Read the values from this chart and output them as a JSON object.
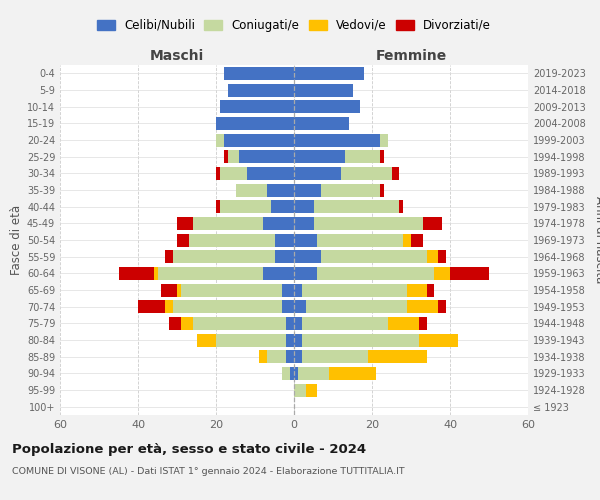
{
  "age_groups": [
    "100+",
    "95-99",
    "90-94",
    "85-89",
    "80-84",
    "75-79",
    "70-74",
    "65-69",
    "60-64",
    "55-59",
    "50-54",
    "45-49",
    "40-44",
    "35-39",
    "30-34",
    "25-29",
    "20-24",
    "15-19",
    "10-14",
    "5-9",
    "0-4"
  ],
  "birth_years": [
    "≤ 1923",
    "1924-1928",
    "1929-1933",
    "1934-1938",
    "1939-1943",
    "1944-1948",
    "1949-1953",
    "1954-1958",
    "1959-1963",
    "1964-1968",
    "1969-1973",
    "1974-1978",
    "1979-1983",
    "1984-1988",
    "1989-1993",
    "1994-1998",
    "1999-2003",
    "2004-2008",
    "2009-2013",
    "2014-2018",
    "2019-2023"
  ],
  "colors": {
    "celibi": "#4472c4",
    "coniugati": "#c5d9a0",
    "vedovi": "#ffc000",
    "divorziati": "#cc0000"
  },
  "maschi": {
    "celibi": [
      0,
      0,
      1,
      2,
      2,
      2,
      3,
      3,
      8,
      5,
      5,
      8,
      6,
      7,
      12,
      14,
      18,
      20,
      19,
      17,
      18
    ],
    "coniugati": [
      0,
      0,
      2,
      5,
      18,
      24,
      28,
      26,
      27,
      26,
      22,
      18,
      13,
      8,
      7,
      3,
      2,
      0,
      0,
      0,
      0
    ],
    "vedovi": [
      0,
      0,
      0,
      2,
      5,
      3,
      2,
      1,
      1,
      0,
      0,
      0,
      0,
      0,
      0,
      0,
      0,
      0,
      0,
      0,
      0
    ],
    "divorziati": [
      0,
      0,
      0,
      0,
      0,
      3,
      7,
      4,
      9,
      2,
      3,
      4,
      1,
      0,
      1,
      1,
      0,
      0,
      0,
      0,
      0
    ]
  },
  "femmine": {
    "celibi": [
      0,
      0,
      1,
      2,
      2,
      2,
      3,
      2,
      6,
      7,
      6,
      5,
      5,
      7,
      12,
      13,
      22,
      14,
      17,
      15,
      18
    ],
    "coniugati": [
      0,
      3,
      8,
      17,
      30,
      22,
      26,
      27,
      30,
      27,
      22,
      28,
      22,
      15,
      13,
      9,
      2,
      0,
      0,
      0,
      0
    ],
    "vedovi": [
      0,
      3,
      12,
      15,
      10,
      8,
      8,
      5,
      4,
      3,
      2,
      0,
      0,
      0,
      0,
      0,
      0,
      0,
      0,
      0,
      0
    ],
    "divorziati": [
      0,
      0,
      0,
      0,
      0,
      2,
      2,
      2,
      10,
      2,
      3,
      5,
      1,
      1,
      2,
      1,
      0,
      0,
      0,
      0,
      0
    ]
  },
  "xlim": 60,
  "title": "Popolazione per età, sesso e stato civile - 2024",
  "subtitle": "COMUNE DI VISONE (AL) - Dati ISTAT 1° gennaio 2024 - Elaborazione TUTTITALIA.IT",
  "xlabel_left": "Maschi",
  "xlabel_right": "Femmine",
  "ylabel_left": "Fasce di età",
  "ylabel_right": "Anni di nascita",
  "legend_labels": [
    "Celibi/Nubili",
    "Coniugati/e",
    "Vedovi/e",
    "Divorziati/e"
  ],
  "bg_color": "#f2f2f2",
  "plot_bg": "#ffffff"
}
